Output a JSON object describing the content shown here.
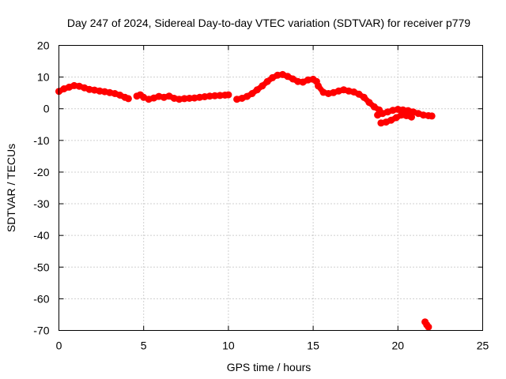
{
  "chart_data": {
    "type": "scatter",
    "title": "Day 247 of 2024, Sidereal Day-to-day VTEC variation (SDTVAR) for receiver p779",
    "xlabel": "GPS time / hours",
    "ylabel": "SDTVAR / TECUs",
    "xlim": [
      0,
      25
    ],
    "ylim": [
      -70,
      20
    ],
    "xticks": [
      0,
      5,
      10,
      15,
      20,
      25
    ],
    "yticks": [
      20,
      10,
      0,
      -10,
      -20,
      -30,
      -40,
      -50,
      -60,
      -70
    ],
    "grid": true,
    "series": [
      {
        "name": "SDTVAR",
        "color": "#ff0000",
        "segments": [
          {
            "x": [
              0.0,
              0.3,
              0.6,
              0.9,
              1.2,
              1.5,
              1.8,
              2.1,
              2.4,
              2.7,
              3.0,
              3.3,
              3.6,
              3.9,
              4.1
            ],
            "y": [
              5.5,
              6.3,
              6.8,
              7.3,
              7.1,
              6.6,
              6.1,
              5.9,
              5.6,
              5.4,
              5.1,
              4.8,
              4.3,
              3.6,
              3.2
            ]
          },
          {
            "x": [
              4.6,
              4.8,
              5.0
            ],
            "y": [
              4.0,
              4.4,
              3.6
            ]
          },
          {
            "x": [
              5.3,
              5.6,
              5.9,
              6.2,
              6.5,
              6.8,
              7.1,
              7.4,
              7.7,
              8.0,
              8.3,
              8.6,
              8.9,
              9.2,
              9.5,
              9.8,
              10.0
            ],
            "y": [
              3.0,
              3.4,
              3.9,
              3.6,
              4.0,
              3.3,
              3.0,
              3.2,
              3.3,
              3.4,
              3.6,
              3.8,
              4.0,
              4.1,
              4.2,
              4.3,
              4.4
            ]
          },
          {
            "x": [
              10.5,
              10.8,
              11.1,
              11.4,
              11.7,
              12.0,
              12.3,
              12.6,
              12.9,
              13.2,
              13.5,
              13.8,
              14.1,
              14.4,
              14.7,
              15.0,
              15.2
            ],
            "y": [
              3.0,
              3.3,
              3.9,
              4.8,
              6.0,
              7.2,
              8.6,
              9.8,
              10.6,
              10.8,
              10.2,
              9.4,
              8.6,
              8.4,
              9.1,
              9.3,
              8.6
            ]
          },
          {
            "x": [
              15.3,
              15.6,
              15.9,
              16.2,
              16.5,
              16.8,
              17.1,
              17.4,
              17.7,
              18.0,
              18.3,
              18.6,
              18.9
            ],
            "y": [
              7.2,
              5.2,
              4.8,
              5.1,
              5.6,
              6.0,
              5.6,
              5.3,
              4.6,
              3.6,
              2.0,
              0.6,
              -0.4
            ]
          },
          {
            "x": [
              18.8,
              19.1,
              19.4,
              19.7,
              20.0,
              20.3,
              20.6,
              20.9,
              21.2,
              21.5,
              21.8,
              22.0
            ],
            "y": [
              -2.0,
              -1.5,
              -1.0,
              -0.5,
              -0.2,
              -0.4,
              -0.6,
              -1.0,
              -1.5,
              -2.0,
              -2.2,
              -2.3
            ]
          },
          {
            "x": [
              19.0,
              19.3,
              19.6,
              19.9,
              20.2,
              20.5,
              20.8
            ],
            "y": [
              -4.5,
              -4.2,
              -3.6,
              -2.8,
              -2.0,
              -2.2,
              -2.6
            ]
          },
          {
            "x": [
              21.6,
              21.7,
              21.8
            ],
            "y": [
              -67.3,
              -68.2,
              -68.9
            ]
          }
        ]
      }
    ]
  }
}
